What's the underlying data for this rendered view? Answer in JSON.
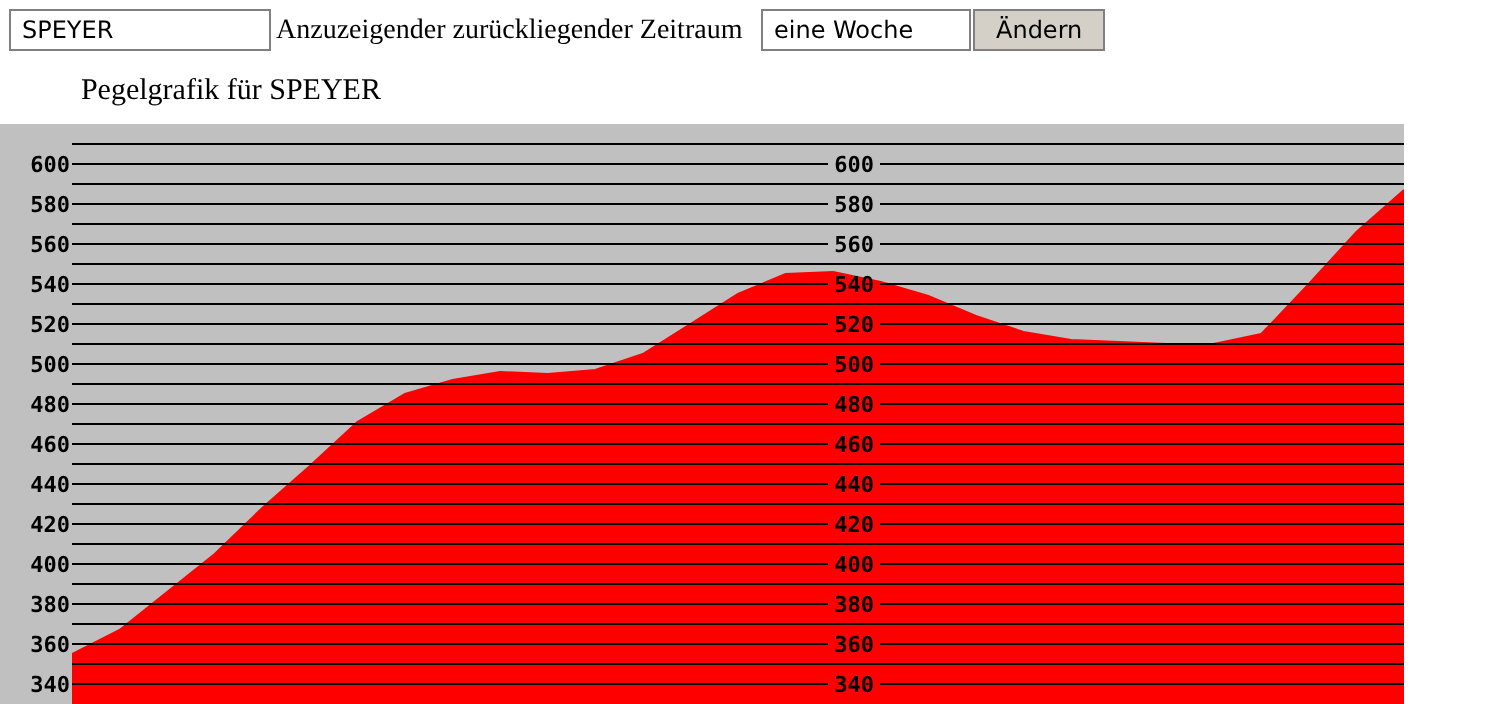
{
  "chart_data": {
    "type": "area",
    "title": "Pegelgrafik für SPEYER",
    "annotations": [
      "SPEYER",
      "Anzuzeigender zurückliegender Zeitraum",
      "eine Woche",
      "Ändern"
    ],
    "categories": [
      null,
      null,
      null,
      null,
      null,
      null,
      null,
      null,
      null,
      null,
      null,
      null,
      null,
      null,
      null,
      null,
      null,
      null,
      null,
      null,
      null,
      null,
      null,
      null,
      null,
      null,
      null,
      null,
      null
    ],
    "series": [
      {
        "color": "#ff0000",
        "values": [
          355,
          367,
          386,
          405,
          428,
          449,
          471,
          485,
          492,
          496,
          495,
          497,
          505,
          520,
          535,
          545,
          546,
          541,
          534,
          524,
          516,
          512,
          511,
          510,
          510,
          515,
          540,
          566,
          587
        ]
      }
    ],
    "ylim": [
      330,
      620
    ],
    "yticks": [
      340,
      {
        "value": 350,
        "label": null
      },
      360,
      {
        "value": 370,
        "label": null
      },
      380,
      {
        "value": 390,
        "label": null
      },
      400,
      {
        "value": 410,
        "label": null
      },
      420,
      {
        "value": 430,
        "label": null
      },
      440,
      {
        "value": 450,
        "label": null
      },
      460,
      {
        "value": 470,
        "label": null
      },
      480,
      {
        "value": 490,
        "label": null
      },
      500,
      {
        "value": 510,
        "label": null
      },
      520,
      {
        "value": 530,
        "label": null
      },
      540,
      {
        "value": 550,
        "label": null
      },
      560,
      {
        "value": 570,
        "label": null
      },
      580,
      {
        "value": 590,
        "label": null
      },
      600,
      {
        "value": 610,
        "label": null
      }
    ],
    "y2lim": [
      330,
      620
    ],
    "y2ticks": [
      340,
      360,
      380,
      400,
      420,
      440,
      460,
      480,
      500,
      520,
      540,
      560,
      580,
      600
    ],
    "tick_labels": "y",
    "grid": "y",
    "marker": "none",
    "line_style": "solid"
  }
}
